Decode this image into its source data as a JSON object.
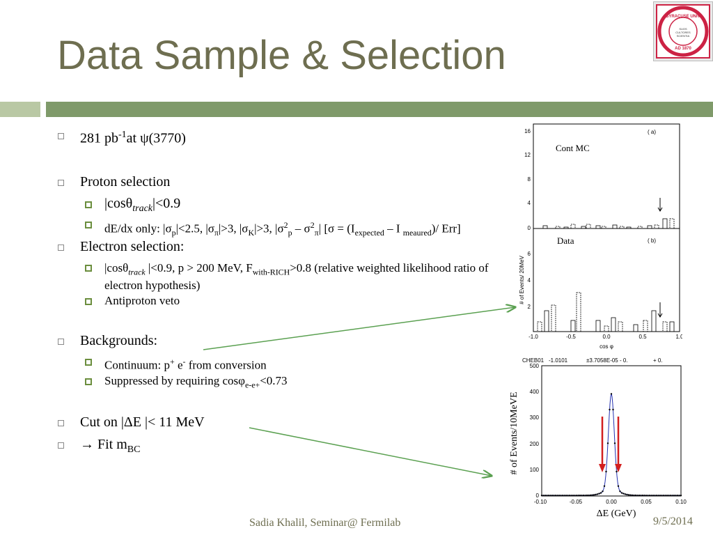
{
  "slide": {
    "title": "Data Sample & Selection",
    "bullets": {
      "lum": {
        "a": "281 pb",
        "sup": "-1",
        "b": "at ψ(3770)"
      },
      "proton": "Proton selection",
      "p1": {
        "a": "|cosθ",
        "i": "track",
        "b": "|<0.9"
      },
      "p2": {
        "a": "dE/dx only: |σ",
        "s1": "p",
        "b": "|<2.5, |σ",
        "s2": "π",
        "c": "|>3, |σ",
        "s3": "K",
        "d": "|>3, |σ",
        "s4": "2",
        "s4b": "p",
        "e": " – σ",
        "s5": "2",
        "s5b": "π",
        "f": "| [σ = (I",
        "s6": "expected",
        "g": " – I ",
        "s7": "meaured",
        "h": ")/ Err]"
      },
      "electron": "Electron selection:",
      "e1": {
        "a": "|cosθ",
        "i": "track",
        "b": " |<0.9, p > 200 MeV, F",
        "s": "with-RICH",
        "c": ">0.8 (relative weighted likelihood ratio of electron hypothesis)"
      },
      "e2": "Antiproton veto",
      "backgrounds": "Backgrounds:",
      "b1": {
        "a": "Continuum: p",
        "s1": "+",
        "b": " e",
        "s2": "-",
        "c": " from conversion"
      },
      "b2": {
        "a": "Suppressed by requiring cosφ",
        "s": "e-e+",
        "b": "<0.73"
      },
      "cut": "Cut on |ΔE |< 11 MeV",
      "fit": {
        "a": "→ Fit m",
        "s": "BC"
      }
    },
    "footer": {
      "author": "Sadia Khalil, Seminar@ Fermilab",
      "date": "9/5/2014"
    },
    "logo": {
      "text": "SYRACUSE UNIVERSITY FOUNDED AD 1870",
      "inner": "SUOS CULTORES SCIENTIA CORONAT"
    },
    "colors": {
      "title": "#6e6e50",
      "bar_dark": "#7f9a6a",
      "bar_light": "#b9c8a4",
      "arrow": "#5aa050",
      "marker": "#d21e1e"
    }
  },
  "chart_data": [
    {
      "type": "bar",
      "panels": [
        {
          "label": "( a)",
          "name": "Cont MC",
          "yticks": [
            "0",
            "4",
            "8",
            "12",
            "16"
          ],
          "ylim": [
            0,
            17
          ]
        },
        {
          "label": "( b)",
          "name": "Data",
          "yticks": [
            "2",
            "4",
            "6"
          ],
          "ylim": [
            0,
            8
          ]
        }
      ],
      "xticks": [
        "-1.0",
        "-0.5",
        "0.0",
        "0.5",
        "1.0"
      ],
      "xlabel": "cos φ",
      "ylabel": "# of Events/ 20MeV"
    },
    {
      "type": "line",
      "header": [
        "CHEB01",
        "-1.0101",
        "±3.7058E-05 - 0.",
        "+ 0."
      ],
      "xticks": [
        "-0.10",
        "-0.05",
        "0.00",
        "0.05",
        "0.10"
      ],
      "yticks": [
        "0",
        "100",
        "200",
        "300",
        "400",
        "500"
      ],
      "xlim": [
        -0.1,
        0.1
      ],
      "ylim": [
        0,
        500
      ],
      "xlabel": "ΔE (GeV)",
      "ylabel": "# of Events/10MeVE",
      "cuts": [
        -0.011,
        0.011
      ]
    }
  ]
}
